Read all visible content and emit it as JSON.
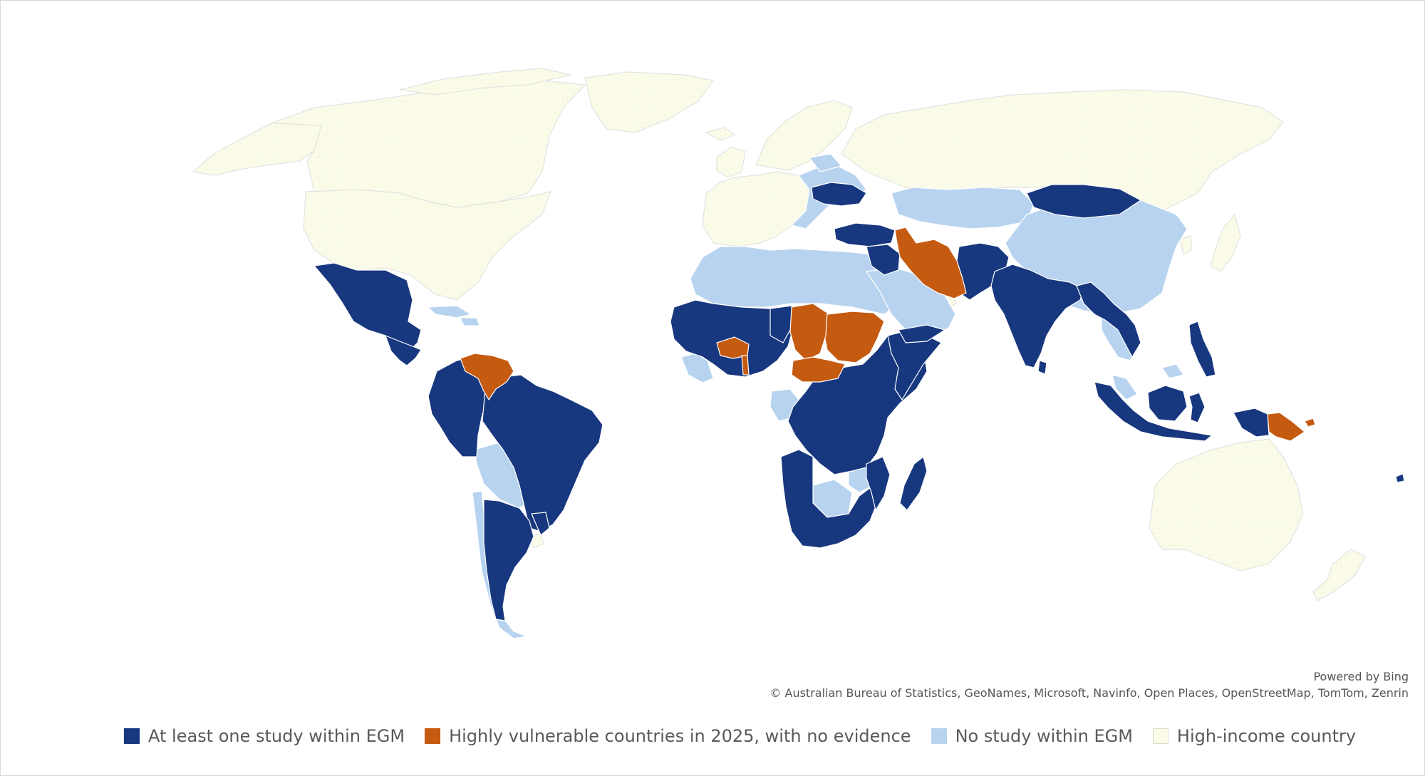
{
  "map": {
    "attribution": {
      "powered_by": "Powered by Bing",
      "copyright": "© Australian Bureau of Statistics, GeoNames, Microsoft, Navinfo, Open Places, OpenStreetMap, TomTom, Zenrin"
    },
    "categories": {
      "study": {
        "color": "#17377f"
      },
      "vulnerable": {
        "color": "#c55a11"
      },
      "nostudy": {
        "color": "#b7d3ef"
      },
      "highincome": {
        "color": "#fbfbe9"
      }
    }
  },
  "legend": {
    "items": [
      {
        "label": "At least one study within EGM",
        "color": "#17377f"
      },
      {
        "label": "Highly vulnerable countries in 2025, with no evidence",
        "color": "#c55a11"
      },
      {
        "label": "No study within EGM",
        "color": "#b7d3ef"
      },
      {
        "label": "High-income country",
        "color": "#fbfbe9"
      }
    ]
  }
}
